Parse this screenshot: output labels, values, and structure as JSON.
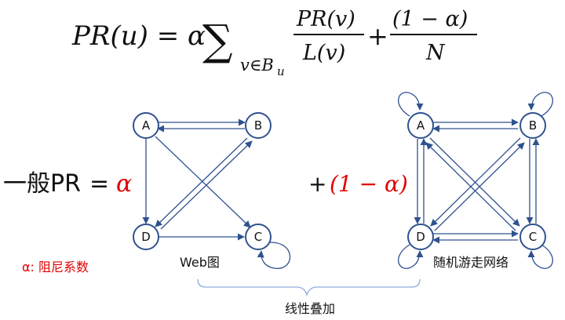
{
  "formula": {
    "lhs": "PR(u) = α",
    "sigma": "∑",
    "sub_v": "v∈B",
    "sub_u": "u",
    "frac1_num": "PR(v)",
    "frac1_den": "L(v)",
    "plus": "+",
    "frac2_num": "(1 − α)",
    "frac2_den": "N"
  },
  "equation": {
    "lhs": "一般PR",
    "equals": "=",
    "alpha": "α",
    "plus": "+",
    "one_minus_alpha": "(1 − α)"
  },
  "captions": {
    "web_graph": "Web图",
    "random_walk": "随机游走网络",
    "linear_superposition": "线性叠加",
    "damping_note": "α: 阻尼系数"
  },
  "nodes": [
    "A",
    "B",
    "C",
    "D"
  ],
  "colors": {
    "accent_red": "#e00000",
    "node_stroke": "#2f528f"
  }
}
